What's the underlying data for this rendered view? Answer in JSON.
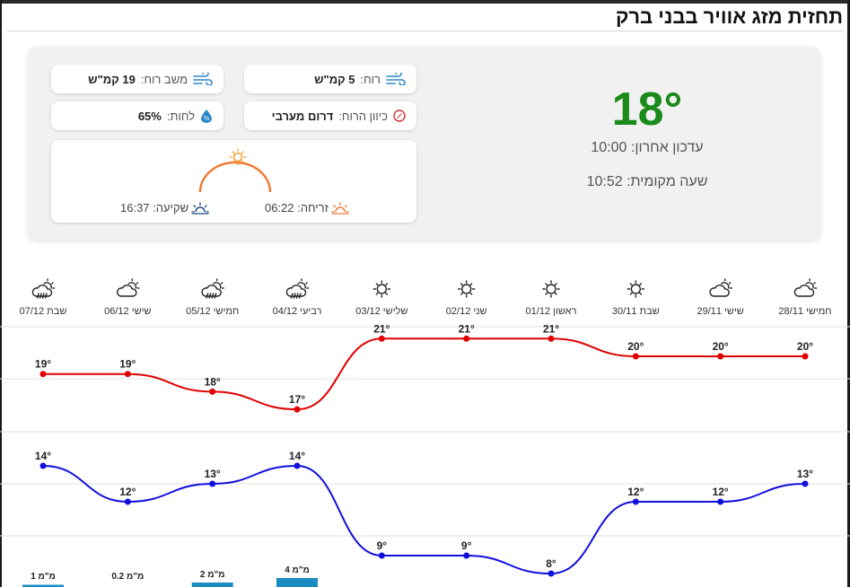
{
  "page_title": "תחזית מזג אוויר בבני ברק",
  "current": {
    "temperature": "18°",
    "last_update": "עדכון אחרון: 10:00",
    "local_time": "שעה מקומית: 10:52",
    "temp_color": "#1a8a1a"
  },
  "details": {
    "wind_label": "רוח:",
    "wind_value": "5 קמ\"ש",
    "gust_label": "משב רוח:",
    "gust_value": "19 קמ\"ש",
    "direction_label": "כיוון הרוח:",
    "direction_value": "דרום מערבי",
    "humidity_label": "לחות:",
    "humidity_value": "65%"
  },
  "sun": {
    "sunrise": "זריחה: 06:22",
    "sunset": "שקיעה: 16:37"
  },
  "forecast": {
    "days": [
      {
        "label": "חמישי 28/11",
        "icon": "partly-cloudy-icon",
        "max": 20,
        "min": 13,
        "precip": ""
      },
      {
        "label": "שישי 29/11",
        "icon": "partly-cloudy-icon",
        "max": 20,
        "min": 12,
        "precip": ""
      },
      {
        "label": "שבת 30/11",
        "icon": "sun-icon",
        "max": 20,
        "min": 12,
        "precip": ""
      },
      {
        "label": "ראשון 01/12",
        "icon": "sun-icon",
        "max": 21,
        "min": 8,
        "precip": ""
      },
      {
        "label": "שני 02/12",
        "icon": "sun-icon",
        "max": 21,
        "min": 9,
        "precip": ""
      },
      {
        "label": "שלישי 03/12",
        "icon": "sun-icon",
        "max": 21,
        "min": 9,
        "precip": ""
      },
      {
        "label": "רביעי 04/12",
        "icon": "rain-icon",
        "max": 17,
        "min": 14,
        "precip": "4 מ\"מ",
        "precip_mm": 4
      },
      {
        "label": "חמישי 05/12",
        "icon": "rain-icon",
        "max": 18,
        "min": 13,
        "precip": "2 מ\"מ",
        "precip_mm": 2
      },
      {
        "label": "שישי 06/12",
        "icon": "partly-cloudy-icon",
        "max": 19,
        "min": 12,
        "precip": "0.2 מ\"מ",
        "precip_mm": 0.2
      },
      {
        "label": "שבת 07/12",
        "icon": "rain-icon",
        "max": 19,
        "min": 14,
        "precip": "1 מ\"מ",
        "precip_mm": 1
      }
    ],
    "max_color": "#e00000",
    "min_color": "#1010dd",
    "precip_color": "#1a8cc0"
  }
}
